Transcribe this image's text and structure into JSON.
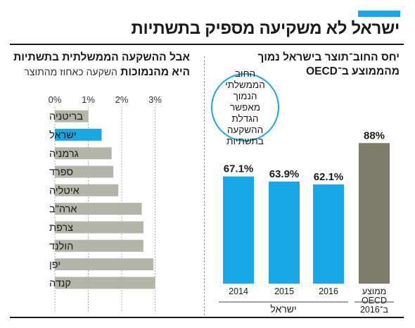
{
  "header": {
    "title": "ישראל לא משקיעה מספיק בתשתיות",
    "accent_color": "#1aa7e6"
  },
  "left_panel": {
    "title_line1": "אבל ההשקעה הממשלתית בתשתיות",
    "title_line2": "היא מהנמוכות",
    "subtitle": "השקעה כאחוז מהתוצר"
  },
  "right_panel": {
    "title_line1": "יחס החוב־תוצר בישראל נמוך",
    "title_line2": "מהממוצע ב־OECD",
    "callout_text": "החוב הממשלתי הנמוך מאפשר הגדלת ההשקעה בתשתיות"
  },
  "chart_data": [
    {
      "type": "bar",
      "orientation": "horizontal",
      "title": "אבל ההשקעה הממשלתית בתשתיות היא מהנמוכות",
      "subtitle": "השקעה כאחוז מהתוצר",
      "categories": [
        "בריטניה",
        "ישראל",
        "גרמניה",
        "ספרד",
        "איטליה",
        "ארה\"ב",
        "צרפת",
        "הולנד",
        "יפן",
        "קנדה"
      ],
      "values": [
        1.0,
        1.4,
        1.7,
        1.75,
        1.9,
        2.6,
        2.65,
        2.65,
        2.95,
        3.0
      ],
      "highlight": "ישראל",
      "x_ticks": [
        "0%",
        "1%",
        "2%",
        "3%"
      ],
      "xlim": [
        0,
        3.2
      ],
      "grid": true,
      "colors": {
        "default": "#b3b5ab",
        "highlight": "#1aa7e6"
      }
    },
    {
      "type": "bar",
      "orientation": "vertical",
      "title": "יחס החוב־תוצר בישראל נמוך מהממוצע ב־OECD",
      "categories": [
        "2014",
        "2015",
        "2016",
        "ממוצע OECD ב־2016"
      ],
      "values": [
        67.1,
        63.9,
        62.1,
        88
      ],
      "value_labels": [
        "67.1%",
        "63.9%",
        "62.1%",
        "88%"
      ],
      "category_labels": [
        [
          "2014"
        ],
        [
          "2015"
        ],
        [
          "2016"
        ],
        [
          "ממוצע",
          "OECD",
          "ב־2016"
        ]
      ],
      "group_label": "ישראל",
      "ylim": [
        0,
        100
      ],
      "colors": {
        "israel": "#1aa7e6",
        "oecd": "#7d7c6a"
      }
    }
  ]
}
